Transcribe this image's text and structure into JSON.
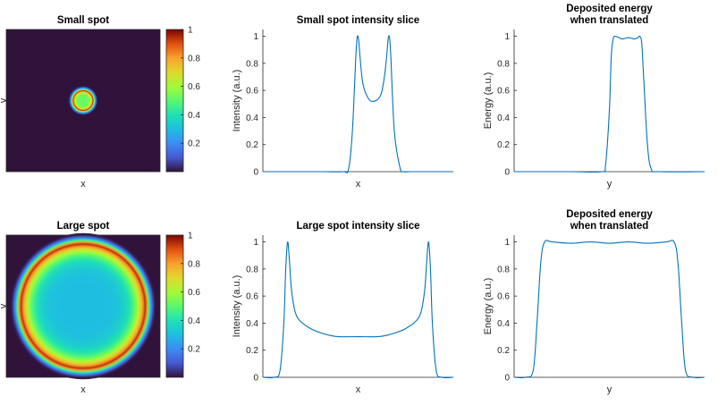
{
  "chart_data": [
    {
      "type": "heatmap",
      "title": "Small spot",
      "xlabel": "x",
      "ylabel": "y",
      "colorbar": {
        "range": [
          0,
          1
        ],
        "ticks": [
          0.2,
          0.4,
          0.6,
          0.8,
          1
        ],
        "tick_labels": [
          "0.2",
          "0.4",
          "0.6",
          "0.8",
          "1"
        ],
        "colormap": "turbo"
      },
      "spot": {
        "center": [
          0.5,
          0.5
        ],
        "ring_radius": 0.065,
        "ring_width": 0.025,
        "center_value": 0.52,
        "ring_value": 1.0
      },
      "background_color": "#30123b"
    },
    {
      "type": "line",
      "title": "Small spot intensity slice",
      "xlabel": "x",
      "ylabel": "Intensity (a.u.)",
      "ylim": [
        0,
        1.05
      ],
      "yticks": [
        0,
        0.2,
        0.4,
        0.6,
        0.8,
        1
      ],
      "ytick_labels": [
        "0",
        "0.2",
        "0.4",
        "0.6",
        "0.8",
        "1"
      ],
      "x": [
        0,
        0.3,
        0.42,
        0.45,
        0.47,
        0.49,
        0.5,
        0.51,
        0.52,
        0.53,
        0.55,
        0.57,
        0.6,
        0.62,
        0.63,
        0.64,
        0.65,
        0.66,
        0.67,
        0.69,
        0.72,
        0.74,
        0.78,
        1
      ],
      "values": [
        0,
        0,
        0,
        0.02,
        0.3,
        0.9,
        1.0,
        0.85,
        0.7,
        0.62,
        0.55,
        0.52,
        0.53,
        0.57,
        0.63,
        0.72,
        0.85,
        1.0,
        0.9,
        0.3,
        0.03,
        0,
        0,
        0
      ],
      "line_color": "#0072BD"
    },
    {
      "type": "line",
      "title": "Deposited energy\nwhen translated",
      "xlabel": "y",
      "ylabel": "Energy (a.u.)",
      "ylim": [
        0,
        1.05
      ],
      "yticks": [
        0,
        0.2,
        0.4,
        0.6,
        0.8,
        1
      ],
      "ytick_labels": [
        "0",
        "0.2",
        "0.4",
        "0.6",
        "0.8",
        "1"
      ],
      "x": [
        0,
        0.3,
        0.46,
        0.48,
        0.5,
        0.51,
        0.52,
        0.53,
        0.55,
        0.57,
        0.6,
        0.63,
        0.65,
        0.66,
        0.67,
        0.68,
        0.7,
        0.72,
        0.76,
        1
      ],
      "values": [
        0,
        0,
        0,
        0.05,
        0.45,
        0.85,
        0.98,
        1.0,
        0.99,
        0.98,
        0.99,
        0.98,
        0.99,
        1.0,
        0.95,
        0.7,
        0.2,
        0.02,
        0,
        0
      ],
      "line_color": "#0072BD"
    },
    {
      "type": "heatmap",
      "title": "Large spot",
      "xlabel": "x",
      "ylabel": "y",
      "colorbar": {
        "range": [
          0,
          1
        ],
        "ticks": [
          0.2,
          0.4,
          0.6,
          0.8,
          1
        ],
        "tick_labels": [
          "0.2",
          "0.4",
          "0.6",
          "0.8",
          "1"
        ],
        "colormap": "turbo"
      },
      "spot": {
        "center": [
          0.5,
          0.5
        ],
        "ring_radius": 0.41,
        "ring_width": 0.05,
        "center_value": 0.3,
        "ring_value": 1.0
      },
      "background_color": "#30123b"
    },
    {
      "type": "line",
      "title": "Large spot intensity slice",
      "xlabel": "x",
      "ylabel": "Intensity (a.u.)",
      "ylim": [
        0,
        1.05
      ],
      "yticks": [
        0,
        0.2,
        0.4,
        0.6,
        0.8,
        1
      ],
      "ytick_labels": [
        "0",
        "0.2",
        "0.4",
        "0.6",
        "0.8",
        "1"
      ],
      "x": [
        0,
        0.06,
        0.09,
        0.11,
        0.12,
        0.13,
        0.14,
        0.15,
        0.17,
        0.2,
        0.25,
        0.3,
        0.35,
        0.4,
        0.5,
        0.6,
        0.65,
        0.7,
        0.75,
        0.8,
        0.83,
        0.85,
        0.86,
        0.87,
        0.88,
        0.89,
        0.91,
        0.94,
        1
      ],
      "values": [
        0,
        0,
        0.05,
        0.4,
        0.8,
        1.0,
        0.85,
        0.65,
        0.48,
        0.41,
        0.36,
        0.33,
        0.31,
        0.3,
        0.3,
        0.3,
        0.31,
        0.33,
        0.36,
        0.41,
        0.48,
        0.65,
        0.85,
        1.0,
        0.8,
        0.4,
        0.05,
        0,
        0
      ],
      "line_color": "#0072BD"
    },
    {
      "type": "line",
      "title": "Deposited energy\nwhen translated",
      "xlabel": "y",
      "ylabel": "Energy (a.u.)",
      "ylim": [
        0,
        1.05
      ],
      "yticks": [
        0,
        0.2,
        0.4,
        0.6,
        0.8,
        1
      ],
      "ytick_labels": [
        "0",
        "0.2",
        "0.4",
        "0.6",
        "0.8",
        "1"
      ],
      "x": [
        0,
        0.06,
        0.1,
        0.12,
        0.14,
        0.16,
        0.2,
        0.3,
        0.4,
        0.5,
        0.6,
        0.7,
        0.8,
        0.84,
        0.86,
        0.88,
        0.9,
        0.94,
        1
      ],
      "values": [
        0,
        0,
        0.05,
        0.4,
        0.85,
        1.0,
        1.0,
        0.99,
        1.0,
        0.99,
        1.0,
        0.99,
        1.0,
        1.0,
        0.85,
        0.4,
        0.05,
        0,
        0
      ],
      "line_color": "#0072BD"
    }
  ]
}
